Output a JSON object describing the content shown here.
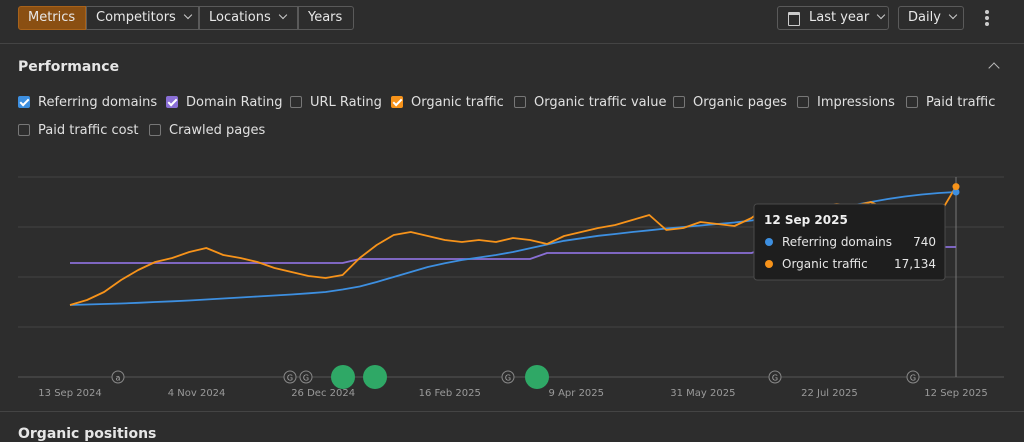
{
  "toolbar": {
    "tabs": [
      {
        "label": "Metrics",
        "active": true
      },
      {
        "label": "Competitors",
        "active": false
      },
      {
        "label": "Locations",
        "active": false
      },
      {
        "label": "Years",
        "active": false
      }
    ],
    "period": "Last year",
    "granularity": "Daily"
  },
  "performance": {
    "title": "Performance",
    "metrics": [
      {
        "label": "Referring domains",
        "checked": true,
        "color": "#3d8fe0"
      },
      {
        "label": "Domain Rating",
        "checked": true,
        "color": "#8a6fd6"
      },
      {
        "label": "URL Rating",
        "checked": false
      },
      {
        "label": "Organic traffic",
        "checked": true,
        "color": "#f7931a"
      },
      {
        "label": "Organic traffic value",
        "checked": false
      },
      {
        "label": "Organic pages",
        "checked": false
      },
      {
        "label": "Impressions",
        "checked": false
      },
      {
        "label": "Paid traffic",
        "checked": false
      },
      {
        "label": "Paid traffic cost",
        "checked": false
      },
      {
        "label": "Crawled pages",
        "checked": false
      }
    ],
    "chart": {
      "type": "line",
      "x": [
        "2024-09-13",
        "2024-09-20",
        "2024-09-27",
        "2024-10-04",
        "2024-10-11",
        "2024-10-18",
        "2024-10-25",
        "2024-11-01",
        "2024-11-08",
        "2024-11-15",
        "2024-11-22",
        "2024-11-29",
        "2024-12-06",
        "2024-12-13",
        "2024-12-20",
        "2024-12-27",
        "2025-01-03",
        "2025-01-10",
        "2025-01-17",
        "2025-01-24",
        "2025-01-31",
        "2025-02-07",
        "2025-02-14",
        "2025-02-21",
        "2025-02-28",
        "2025-03-07",
        "2025-03-14",
        "2025-03-21",
        "2025-03-28",
        "2025-04-04",
        "2025-04-11",
        "2025-04-18",
        "2025-04-25",
        "2025-05-02",
        "2025-05-09",
        "2025-05-16",
        "2025-05-23",
        "2025-05-30",
        "2025-06-06",
        "2025-06-13",
        "2025-06-20",
        "2025-06-27",
        "2025-07-04",
        "2025-07-11",
        "2025-07-18",
        "2025-07-25",
        "2025-08-01",
        "2025-08-08",
        "2025-08-15",
        "2025-08-22",
        "2025-08-29",
        "2025-09-05",
        "2025-09-12"
      ],
      "xlim": [
        "2024-09-13",
        "2025-09-12"
      ],
      "xticks": [
        {
          "value": "2024-09-13",
          "label": "13 Sep 2024"
        },
        {
          "value": "2024-11-04",
          "label": "4 Nov 2024"
        },
        {
          "value": "2024-12-26",
          "label": "26 Dec 2024"
        },
        {
          "value": "2025-02-16",
          "label": "16 Feb 2025"
        },
        {
          "value": "2025-04-09",
          "label": "9 Apr 2025"
        },
        {
          "value": "2025-05-31",
          "label": "31 May 2025"
        },
        {
          "value": "2025-07-22",
          "label": "22 Jul 2025"
        },
        {
          "value": "2025-09-12",
          "label": "12 Sep 2025"
        }
      ],
      "grid": true,
      "series": [
        {
          "name": "Referring domains",
          "color": "#3d8fe0",
          "ylim": [
            0,
            800
          ],
          "values": [
            288,
            290,
            292,
            294,
            297,
            300,
            303,
            306,
            310,
            314,
            318,
            322,
            326,
            330,
            335,
            340,
            350,
            362,
            380,
            400,
            420,
            440,
            455,
            468,
            478,
            488,
            500,
            515,
            530,
            545,
            555,
            565,
            572,
            580,
            587,
            594,
            600,
            606,
            612,
            618,
            626,
            636,
            646,
            656,
            666,
            676,
            688,
            700,
            712,
            722,
            730,
            736,
            740
          ]
        },
        {
          "name": "Domain Rating",
          "color": "#8a6fd6",
          "ylim": [
            0,
            100
          ],
          "values": [
            57,
            57,
            57,
            57,
            57,
            57,
            57,
            57,
            57,
            57,
            57,
            57,
            57,
            57,
            57,
            57,
            57,
            59,
            59,
            59,
            59,
            59,
            59,
            59,
            59,
            59,
            59,
            59,
            62,
            62,
            62,
            62,
            62,
            62,
            62,
            62,
            62,
            62,
            62,
            62,
            62,
            65,
            65,
            65,
            65,
            65,
            65,
            65,
            65,
            65,
            65,
            65,
            65
          ]
        },
        {
          "name": "Organic traffic",
          "color": "#f7931a",
          "ylim": [
            0,
            18000
          ],
          "values": [
            6480,
            6930,
            7650,
            8730,
            9630,
            10350,
            10710,
            11250,
            11610,
            10980,
            10710,
            10350,
            9810,
            9450,
            9090,
            8910,
            9180,
            10710,
            11880,
            12780,
            13050,
            12690,
            12330,
            12150,
            12330,
            12150,
            12510,
            12330,
            11970,
            12690,
            13050,
            13410,
            13680,
            14130,
            14580,
            13230,
            13410,
            13950,
            13770,
            13590,
            14310,
            15480,
            14850,
            15030,
            15390,
            15570,
            15390,
            15750,
            15030,
            14850,
            15480,
            14580,
            17134
          ]
        }
      ],
      "event_markers": [
        "a",
        "G",
        "G",
        "G",
        "G",
        "G"
      ],
      "tooltip": {
        "title": "12 Sep 2025",
        "rows": [
          {
            "name": "Referring domains",
            "value": 740,
            "value_label": "740"
          },
          {
            "name": "Organic traffic",
            "value": 17134,
            "value_label": "17,134"
          }
        ]
      }
    }
  },
  "next_section": "Organic positions"
}
